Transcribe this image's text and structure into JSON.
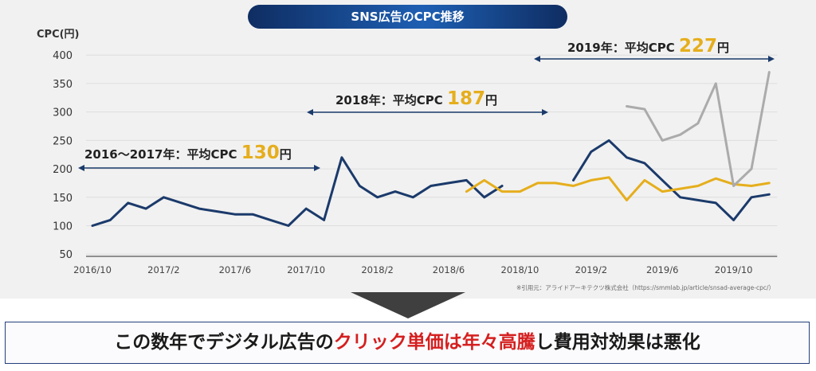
{
  "title": "SNS広告のCPC推移",
  "source_note": "※引用元：アライドアーキテクツ株式会社（https://smmlab.jp/article/snsad-average-cpc/）",
  "colors": {
    "series_2016_2019": "#1b3a6b",
    "series_2018_2019": "#e5ae1c",
    "series_2019": "#ababab",
    "highlight_number": "#e5ae1c",
    "conclusion_highlight": "#d51f1f"
  },
  "annotations": [
    {
      "label": "2016〜2017年：平均CPC ",
      "value": "130",
      "unit": "円"
    },
    {
      "label": "2018年：平均CPC ",
      "value": "187",
      "unit": "円"
    },
    {
      "label": "2019年：平均CPC ",
      "value": "227",
      "unit": "円"
    }
  ],
  "conclusion": {
    "before": "この数年でデジタル広告の",
    "highlight": "クリック単価は年々高騰",
    "after": "し費用対効果は悪化"
  },
  "chart_data": {
    "type": "line",
    "title": "SNS広告のCPC推移",
    "ylabel": "CPC(円)",
    "ylim": [
      50,
      400
    ],
    "yticks": [
      50,
      100,
      150,
      200,
      250,
      300,
      350,
      400
    ],
    "x_start": "2016/10",
    "x_end": "2019/12",
    "xticks": [
      "2016/10",
      "2017/2",
      "2017/6",
      "2017/10",
      "2018/2",
      "2018/6",
      "2018/10",
      "2019/2",
      "2019/6",
      "2019/10"
    ],
    "grid": true,
    "series": [
      {
        "color": "#1b3a6b",
        "points": [
          [
            "2016/10",
            100
          ],
          [
            "2016/11",
            110
          ],
          [
            "2016/12",
            140
          ],
          [
            "2017/1",
            130
          ],
          [
            "2017/2",
            150
          ],
          [
            "2017/3",
            140
          ],
          [
            "2017/4",
            130
          ],
          [
            "2017/5",
            125
          ],
          [
            "2017/6",
            120
          ],
          [
            "2017/7",
            120
          ],
          [
            "2017/8",
            110
          ],
          [
            "2017/9",
            100
          ],
          [
            "2017/10",
            130
          ],
          [
            "2017/11",
            110
          ],
          [
            "2017/12",
            220
          ],
          [
            "2018/1",
            170
          ],
          [
            "2018/2",
            150
          ],
          [
            "2018/3",
            160
          ],
          [
            "2018/4",
            150
          ],
          [
            "2018/5",
            170
          ],
          [
            "2018/6",
            175
          ],
          [
            "2018/7",
            180
          ],
          [
            "2018/8",
            150
          ],
          [
            "2018/9",
            170
          ],
          [
            "2018/10",
            null
          ],
          [
            "2018/11",
            null
          ],
          [
            "2018/12",
            null
          ],
          [
            "2019/1",
            180
          ],
          [
            "2019/2",
            230
          ],
          [
            "2019/3",
            250
          ],
          [
            "2019/4",
            220
          ],
          [
            "2019/5",
            210
          ],
          [
            "2019/6",
            180
          ],
          [
            "2019/7",
            150
          ],
          [
            "2019/8",
            145
          ],
          [
            "2019/9",
            140
          ],
          [
            "2019/10",
            110
          ],
          [
            "2019/11",
            150
          ],
          [
            "2019/12",
            155
          ]
        ]
      },
      {
        "color": "#e5ae1c",
        "points": [
          [
            "2018/7",
            160
          ],
          [
            "2018/8",
            180
          ],
          [
            "2018/9",
            160
          ],
          [
            "2018/10",
            160
          ],
          [
            "2018/11",
            175
          ],
          [
            "2018/12",
            175
          ],
          [
            "2019/1",
            170
          ],
          [
            "2019/2",
            180
          ],
          [
            "2019/3",
            185
          ],
          [
            "2019/4",
            145
          ],
          [
            "2019/5",
            180
          ],
          [
            "2019/6",
            160
          ],
          [
            "2019/7",
            165
          ],
          [
            "2019/8",
            170
          ],
          [
            "2019/9",
            183
          ],
          [
            "2019/10",
            173
          ],
          [
            "2019/11",
            170
          ],
          [
            "2019/12",
            175
          ]
        ]
      },
      {
        "color": "#ababab",
        "points": [
          [
            "2019/4",
            310
          ],
          [
            "2019/5",
            305
          ],
          [
            "2019/6",
            250
          ],
          [
            "2019/7",
            260
          ],
          [
            "2019/8",
            280
          ],
          [
            "2019/9",
            350
          ],
          [
            "2019/10",
            170
          ],
          [
            "2019/11",
            200
          ],
          [
            "2019/12",
            370
          ]
        ]
      }
    ]
  }
}
